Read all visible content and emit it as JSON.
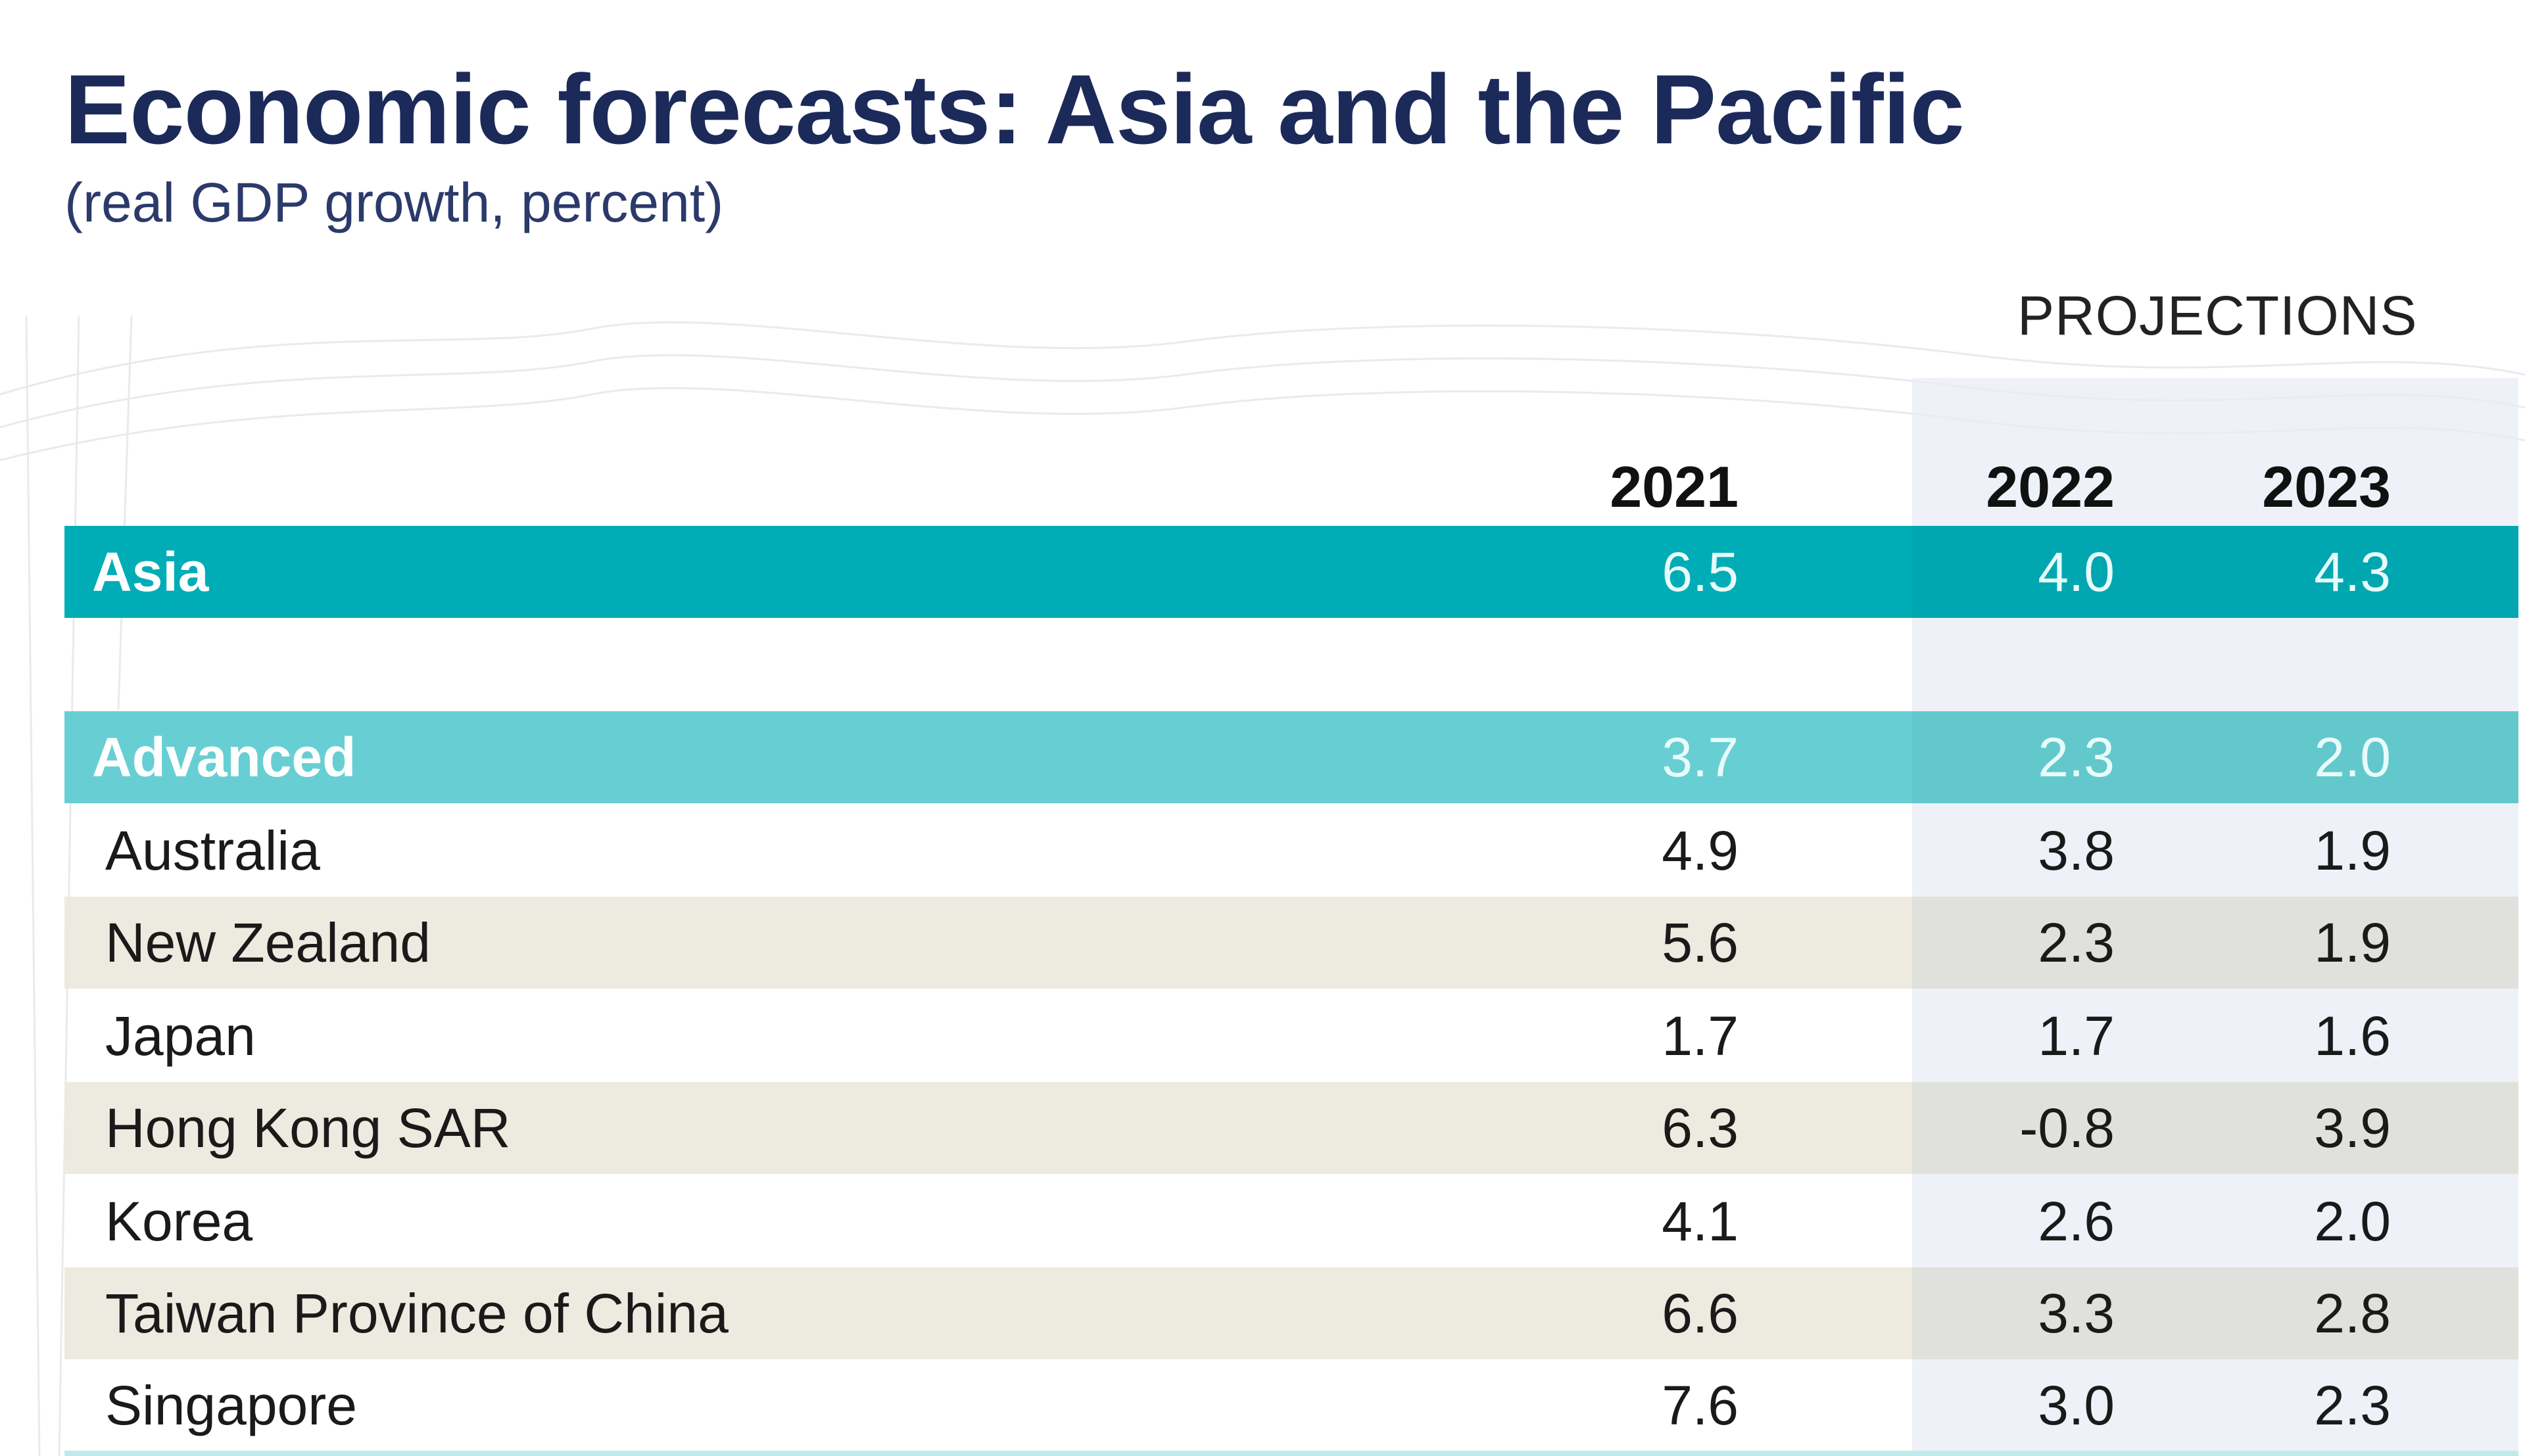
{
  "chart_data": {
    "type": "table",
    "title": "Economic forecasts: Asia and the Pacific",
    "subtitle": "(real GDP growth, percent)",
    "projections_label": "PROJECTIONS",
    "columns": [
      "2021",
      "2022",
      "2023"
    ],
    "projection_columns": [
      "2022",
      "2023"
    ],
    "rows": [
      {
        "name": "Asia",
        "kind": "group-primary",
        "values": [
          "6.5",
          "4.0",
          "4.3"
        ]
      },
      {
        "name": "Advanced",
        "kind": "group-secondary",
        "values": [
          "3.7",
          "2.3",
          "2.0"
        ]
      },
      {
        "name": "Australia",
        "kind": "country",
        "values": [
          "4.9",
          "3.8",
          "1.9"
        ]
      },
      {
        "name": "New Zealand",
        "kind": "country",
        "values": [
          "5.6",
          "2.3",
          "1.9"
        ]
      },
      {
        "name": "Japan",
        "kind": "country",
        "values": [
          "1.7",
          "1.7",
          "1.6"
        ]
      },
      {
        "name": "Hong Kong SAR",
        "kind": "country",
        "values": [
          "6.3",
          "-0.8",
          "3.9"
        ]
      },
      {
        "name": "Korea",
        "kind": "country",
        "values": [
          "4.1",
          "2.6",
          "2.0"
        ]
      },
      {
        "name": "Taiwan Province of China",
        "kind": "country",
        "values": [
          "6.6",
          "3.3",
          "2.8"
        ]
      },
      {
        "name": "Singapore",
        "kind": "country",
        "values": [
          "7.6",
          "3.0",
          "2.3"
        ]
      }
    ]
  },
  "colors": {
    "title": "#1c2a5a",
    "asia_band": "#00adb6",
    "advanced_band": "#67cfd3",
    "alt_row": "#ece9de",
    "projection_band": "#e8ecf4"
  }
}
